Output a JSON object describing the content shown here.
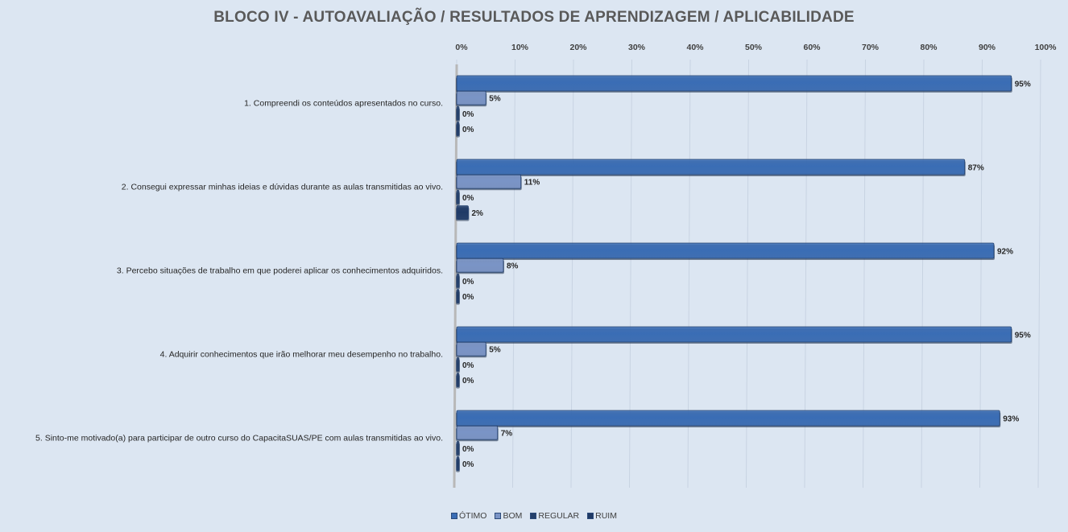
{
  "chart_data": {
    "type": "bar",
    "orientation": "horizontal",
    "title": "BLOCO IV - AUTOAVALIAÇÃO / RESULTADOS DE APRENDIZAGEM / APLICABILIDADE",
    "categories": [
      "1. Compreendi os conteúdos apresentados no curso.",
      "2. Consegui expressar minhas ideias e dúvidas durante as aulas transmitidas ao vivo.",
      "3. Percebo situações de trabalho em que poderei aplicar os conhecimentos adquiridos.",
      "4. Adquirir conhecimentos que irão melhorar meu desempenho no trabalho.",
      "5. Sinto-me motivado(a) para participar de outro curso do CapacitaSUAS/PE com aulas transmitidas ao vivo."
    ],
    "series": [
      {
        "name": "ÓTIMO",
        "values": [
          95,
          87,
          92,
          95,
          93
        ],
        "color": "#3a6db5"
      },
      {
        "name": "BOM",
        "values": [
          5,
          11,
          8,
          5,
          7
        ],
        "color": "#7a94c6"
      },
      {
        "name": "REGULAR",
        "values": [
          0,
          0,
          0,
          0,
          0
        ],
        "color": "#24406b"
      },
      {
        "name": "RUIM",
        "values": [
          0,
          2,
          0,
          0,
          0
        ],
        "color": "#1f3a66"
      }
    ],
    "xlim": [
      0,
      100
    ],
    "x_ticks": [
      "0%",
      "10%",
      "20%",
      "30%",
      "40%",
      "50%",
      "60%",
      "70%",
      "80%",
      "90%",
      "100%"
    ],
    "value_suffix": "%",
    "axis_position": "top",
    "grid": true,
    "legend_position": "bottom"
  }
}
